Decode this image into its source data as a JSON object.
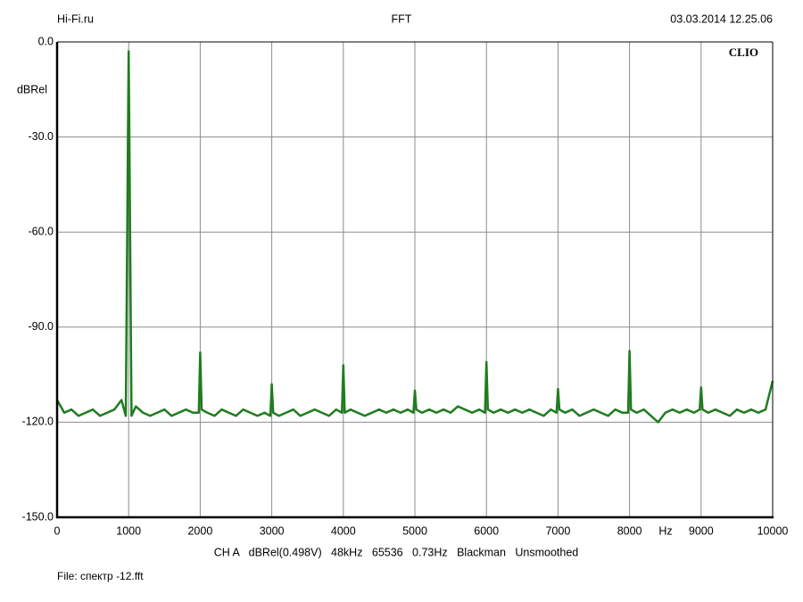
{
  "chart_data": {
    "type": "line",
    "title": "FFT",
    "header_left": "Hi-Fi.ru",
    "header_right": "03.03.2014 12.25.06",
    "brand": "CLIO",
    "ylabel": "dBRel",
    "xlabel": "Hz",
    "settings_line": "CH A   dBRel(0.498V)   48kHz   65536   0.73Hz   Blackman   Unsmoothed",
    "file_line": "File: спектр -12.fft",
    "grid": true,
    "xlim": [
      0,
      10000
    ],
    "xticks": [
      0,
      1000,
      2000,
      3000,
      4000,
      5000,
      6000,
      7000,
      8000,
      9000,
      10000
    ],
    "ylim": [
      -150,
      0
    ],
    "yticks": [
      {
        "value": 0,
        "label": "0.0"
      },
      {
        "value": -30,
        "label": "-30.0"
      },
      {
        "value": -60,
        "label": "-60.0"
      },
      {
        "value": -90,
        "label": "-90.0"
      },
      {
        "value": -120,
        "label": "-120.0"
      },
      {
        "value": -150,
        "label": "-150.0"
      }
    ],
    "x": [
      0,
      100,
      200,
      300,
      400,
      500,
      600,
      700,
      800,
      900,
      960,
      980,
      990,
      1000,
      1010,
      1020,
      1040,
      1100,
      1200,
      1300,
      1400,
      1500,
      1600,
      1700,
      1800,
      1900,
      1980,
      2000,
      2020,
      2100,
      2200,
      2300,
      2400,
      2500,
      2600,
      2700,
      2800,
      2900,
      2980,
      3000,
      3020,
      3100,
      3200,
      3300,
      3400,
      3500,
      3600,
      3700,
      3800,
      3900,
      3980,
      4000,
      4020,
      4100,
      4200,
      4300,
      4400,
      4500,
      4600,
      4700,
      4800,
      4900,
      4980,
      5000,
      5020,
      5100,
      5200,
      5300,
      5400,
      5500,
      5600,
      5700,
      5800,
      5900,
      5980,
      6000,
      6020,
      6100,
      6200,
      6300,
      6400,
      6500,
      6600,
      6700,
      6800,
      6900,
      6980,
      7000,
      7020,
      7100,
      7200,
      7300,
      7400,
      7500,
      7600,
      7700,
      7800,
      7900,
      7980,
      8000,
      8020,
      8100,
      8200,
      8300,
      8400,
      8500,
      8600,
      8700,
      8800,
      8900,
      8980,
      9000,
      9020,
      9100,
      9200,
      9300,
      9400,
      9500,
      9600,
      9700,
      9800,
      9900,
      10000
    ],
    "series": [
      {
        "color": "#1f7d1f",
        "values": [
          -113,
          -117,
          -116,
          -118,
          -117,
          -116,
          -118,
          -117,
          -116,
          -113,
          -118,
          -60,
          -30,
          -3,
          -30,
          -60,
          -118,
          -115,
          -117,
          -118,
          -117,
          -116,
          -118,
          -117,
          -116,
          -117,
          -117,
          -98,
          -116,
          -117,
          -118,
          -116,
          -117,
          -118,
          -116,
          -117,
          -118,
          -117,
          -118,
          -108,
          -117,
          -118,
          -117,
          -116,
          -118,
          -117,
          -116,
          -117,
          -118,
          -116,
          -117,
          -102,
          -117,
          -116,
          -117,
          -118,
          -117,
          -116,
          -117,
          -116,
          -117,
          -116,
          -117,
          -110,
          -116,
          -117,
          -116,
          -117,
          -116,
          -117,
          -115,
          -116,
          -117,
          -116,
          -117,
          -101,
          -116,
          -117,
          -116,
          -117,
          -116,
          -117,
          -116,
          -117,
          -118,
          -116,
          -117,
          -109.5,
          -116,
          -117,
          -116,
          -118,
          -117,
          -116,
          -117,
          -118,
          -116,
          -117,
          -117,
          -97.5,
          -116,
          -117,
          -116,
          -118,
          -120,
          -117,
          -116,
          -117,
          -116,
          -117,
          -116,
          -109,
          -116,
          -117,
          -116,
          -117,
          -118,
          -116,
          -117,
          -116,
          -117,
          -116,
          -107
        ]
      }
    ]
  }
}
